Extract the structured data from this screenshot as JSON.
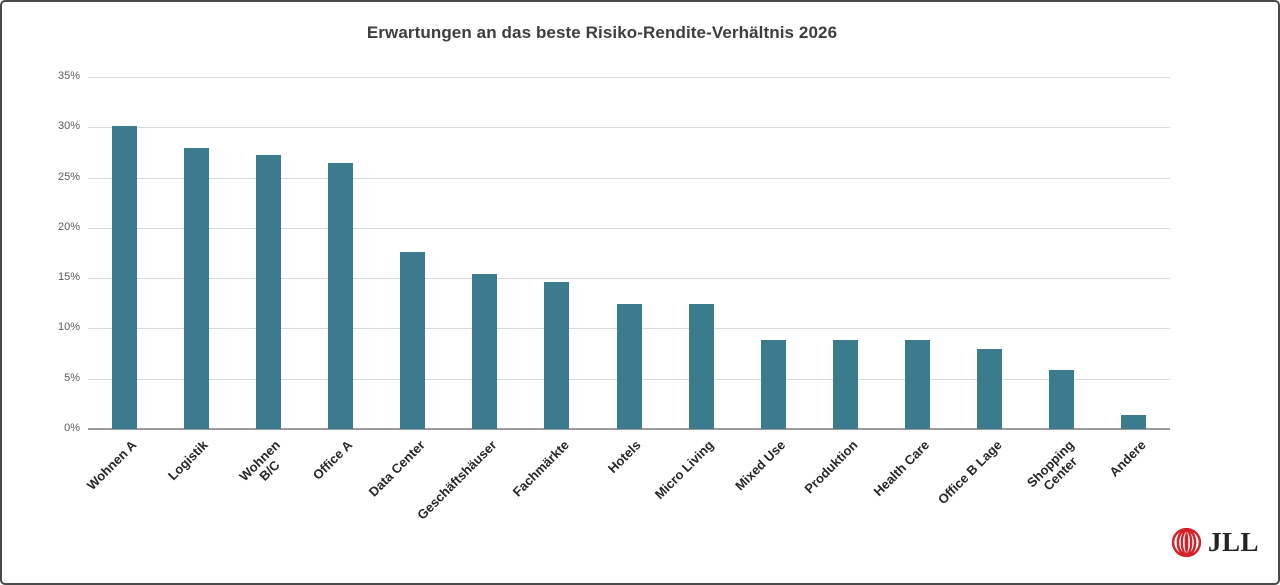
{
  "window": {
    "background": "#ffffff",
    "border_color": "#4a4a4a"
  },
  "chart_data": {
    "type": "bar",
    "title": "Erwartungen an das beste Risiko-Rendite-Verhältnis 2026",
    "categories": [
      "Wohnen A",
      "Logistik",
      "Wohnen\nB/C",
      "Office A",
      "Data Center",
      "Geschäftshäuser",
      "Fachmärkte",
      "Hotels",
      "Micro Living",
      "Mixed Use",
      "Produktion",
      "Health Care",
      "Office B Lage",
      "Shopping\nCenter",
      "Andere"
    ],
    "values": [
      30.1,
      27.9,
      27.2,
      26.4,
      17.6,
      15.4,
      14.6,
      12.4,
      12.4,
      8.8,
      8.8,
      8.8,
      8.0,
      5.9,
      1.4
    ],
    "unit": "%",
    "xlabel": "",
    "ylabel": "",
    "ylim": [
      0,
      35
    ],
    "ytick_step": 5,
    "ytick_labels": [
      "0%",
      "5%",
      "10%",
      "15%",
      "20%",
      "25%",
      "30%",
      "35%"
    ],
    "grid": true,
    "legend": "none",
    "bar_color": "#3c7a8e",
    "gridline_color": "#d9d9d9",
    "axis_line_color": "#9b9b9b",
    "tick_label_color": "#595959",
    "category_label_color": "#262626",
    "title_color": "#3d3d3d"
  },
  "branding": {
    "logo_text": "JLL",
    "logo_mark": "jll-concentric-arcs-mark",
    "logo_mark_color": "#d2232a",
    "logo_text_color": "#242424"
  }
}
